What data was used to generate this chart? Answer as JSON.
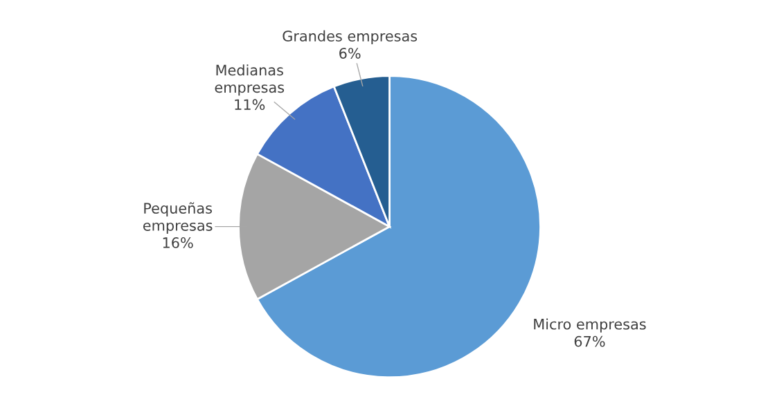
{
  "chart_data": {
    "type": "pie",
    "categories": [
      "Micro empresas",
      "Pequeñas\nempresas",
      "Medianas\nempresas",
      "Grandes empresas"
    ],
    "values": [
      67,
      16,
      11,
      6
    ],
    "colors": [
      "#5b9bd5",
      "#a5a5a5",
      "#4472c4",
      "#255e91"
    ],
    "value_labels": [
      "67%",
      "16%",
      "11%",
      "6%"
    ],
    "legend": false
  }
}
